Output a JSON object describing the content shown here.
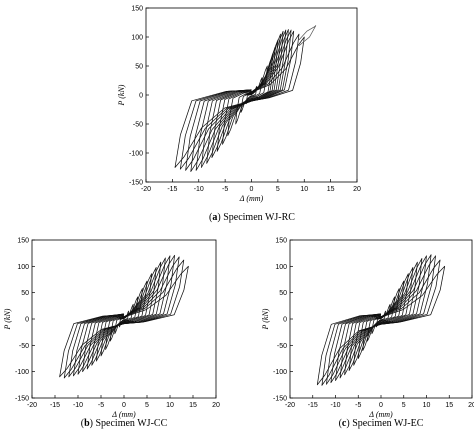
{
  "chart_data": [
    {
      "id": "a",
      "type": "line",
      "caption_letter": "a",
      "caption_text": "Specimen WJ-RC",
      "xlabel": "Δ (mm)",
      "ylabel": "P (kN)",
      "xlim": [
        -20,
        20
      ],
      "ylim": [
        -150,
        150
      ],
      "xticks": [
        -20,
        -15,
        -10,
        -5,
        0,
        5,
        10,
        15,
        20
      ],
      "yticks": [
        -150,
        -100,
        -50,
        0,
        50,
        100,
        150
      ],
      "grid": false,
      "hysteresis": {
        "cycles": [
          {
            "dpos": 1.0,
            "ppos": 15,
            "dneg": -1.0,
            "pneg": -15
          },
          {
            "dpos": 2.0,
            "ppos": 30,
            "dneg": -2.0,
            "pneg": -30
          },
          {
            "dpos": 3.0,
            "ppos": 50,
            "dneg": -3.0,
            "pneg": -50
          },
          {
            "dpos": 4.0,
            "ppos": 68,
            "dneg": -4.5,
            "pneg": -70
          },
          {
            "dpos": 4.5,
            "ppos": 82,
            "dneg": -5.5,
            "pneg": -85
          },
          {
            "dpos": 5.0,
            "ppos": 95,
            "dneg": -6.5,
            "pneg": -97
          },
          {
            "dpos": 5.5,
            "ppos": 105,
            "dneg": -7.5,
            "pneg": -108
          },
          {
            "dpos": 6.0,
            "ppos": 110,
            "dneg": -8.5,
            "pneg": -118
          },
          {
            "dpos": 6.5,
            "ppos": 112,
            "dneg": -9.5,
            "pneg": -125
          },
          {
            "dpos": 7.0,
            "ppos": 113,
            "dneg": -10.5,
            "pneg": -130
          },
          {
            "dpos": 7.5,
            "ppos": 112,
            "dneg": -11.5,
            "pneg": -132
          },
          {
            "dpos": 8.0,
            "ppos": 110,
            "dneg": -12.5,
            "pneg": -130
          },
          {
            "dpos": 9.0,
            "ppos": 105,
            "dneg": -13.5,
            "pneg": -128
          },
          {
            "dpos": 10.0,
            "ppos": 100,
            "dneg": -14.5,
            "pneg": -125
          }
        ],
        "tail": {
          "x": [
            9.0,
            10.5,
            12.0,
            12.2,
            11.0,
            9.0
          ],
          "y": [
            95,
            110,
            118,
            120,
            100,
            85
          ]
        }
      }
    },
    {
      "id": "b",
      "type": "line",
      "caption_letter": "b",
      "caption_text": "Specimen WJ-CC",
      "xlabel": "Δ (mm)",
      "ylabel": "P (kN)",
      "xlim": [
        -20,
        20
      ],
      "ylim": [
        -150,
        150
      ],
      "xticks": [
        -20,
        -15,
        -10,
        -5,
        0,
        5,
        10,
        15,
        20
      ],
      "yticks": [
        -150,
        -100,
        -50,
        0,
        50,
        100,
        150
      ],
      "grid": false,
      "hysteresis": {
        "cycles": [
          {
            "dpos": 1.0,
            "ppos": 15,
            "dneg": -1.0,
            "pneg": -15
          },
          {
            "dpos": 2.0,
            "ppos": 28,
            "dneg": -2.0,
            "pneg": -28
          },
          {
            "dpos": 3.0,
            "ppos": 42,
            "dneg": -3.0,
            "pneg": -42
          },
          {
            "dpos": 4.0,
            "ppos": 58,
            "dneg": -4.0,
            "pneg": -58
          },
          {
            "dpos": 5.0,
            "ppos": 72,
            "dneg": -5.0,
            "pneg": -70
          },
          {
            "dpos": 6.0,
            "ppos": 86,
            "dneg": -6.0,
            "pneg": -80
          },
          {
            "dpos": 7.0,
            "ppos": 98,
            "dneg": -7.0,
            "pneg": -88
          },
          {
            "dpos": 8.0,
            "ppos": 108,
            "dneg": -8.0,
            "pneg": -95
          },
          {
            "dpos": 9.0,
            "ppos": 116,
            "dneg": -9.0,
            "pneg": -100
          },
          {
            "dpos": 10.0,
            "ppos": 120,
            "dneg": -10.0,
            "pneg": -105
          },
          {
            "dpos": 11.0,
            "ppos": 121,
            "dneg": -11.0,
            "pneg": -108
          },
          {
            "dpos": 12.0,
            "ppos": 118,
            "dneg": -12.0,
            "pneg": -110
          },
          {
            "dpos": 13.0,
            "ppos": 112,
            "dneg": -13.0,
            "pneg": -112
          },
          {
            "dpos": 14.0,
            "ppos": 100,
            "dneg": -14.0,
            "pneg": -110
          }
        ]
      }
    },
    {
      "id": "c",
      "type": "line",
      "caption_letter": "c",
      "caption_text": "Specimen WJ-EC",
      "xlabel": "Δ (mm)",
      "ylabel": "P (kN)",
      "xlim": [
        -20,
        20
      ],
      "ylim": [
        -150,
        150
      ],
      "xticks": [
        -20,
        -15,
        -10,
        -5,
        0,
        5,
        10,
        15,
        20
      ],
      "yticks": [
        -150,
        -100,
        -50,
        0,
        50,
        100,
        150
      ],
      "grid": false,
      "hysteresis": {
        "cycles": [
          {
            "dpos": 1.0,
            "ppos": 15,
            "dneg": -1.0,
            "pneg": -15
          },
          {
            "dpos": 2.0,
            "ppos": 28,
            "dneg": -2.0,
            "pneg": -28
          },
          {
            "dpos": 3.0,
            "ppos": 42,
            "dneg": -3.0,
            "pneg": -42
          },
          {
            "dpos": 4.0,
            "ppos": 58,
            "dneg": -4.0,
            "pneg": -60
          },
          {
            "dpos": 5.0,
            "ppos": 72,
            "dneg": -5.0,
            "pneg": -75
          },
          {
            "dpos": 6.0,
            "ppos": 86,
            "dneg": -6.0,
            "pneg": -88
          },
          {
            "dpos": 7.0,
            "ppos": 98,
            "dneg": -7.0,
            "pneg": -98
          },
          {
            "dpos": 8.0,
            "ppos": 108,
            "dneg": -8.0,
            "pneg": -106
          },
          {
            "dpos": 9.0,
            "ppos": 115,
            "dneg": -9.0,
            "pneg": -112
          },
          {
            "dpos": 10.0,
            "ppos": 120,
            "dneg": -10.0,
            "pneg": -117
          },
          {
            "dpos": 11.0,
            "ppos": 122,
            "dneg": -11.0,
            "pneg": -121
          },
          {
            "dpos": 12.0,
            "ppos": 120,
            "dneg": -12.0,
            "pneg": -124
          },
          {
            "dpos": 13.0,
            "ppos": 112,
            "dneg": -13.0,
            "pneg": -126
          },
          {
            "dpos": 14.0,
            "ppos": 100,
            "dneg": -14.0,
            "pneg": -125
          }
        ]
      }
    }
  ]
}
